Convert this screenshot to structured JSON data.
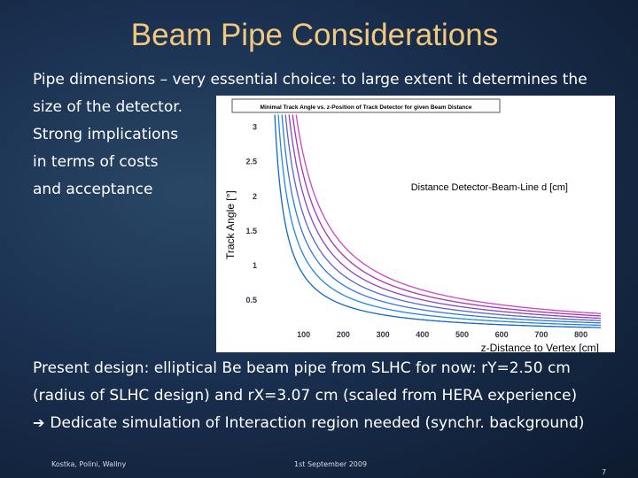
{
  "slide": {
    "title": "Beam Pipe Considerations",
    "line1": "Pipe dimensions – very essential choice: to large extent it determines the",
    "line2": "size of the detector.",
    "line3": "Strong implications",
    "line4": "in terms of costs",
    "line5": "and acceptance",
    "line6": "Present design: elliptical Be beam pipe from SLHC for now: rY=2.50 cm",
    "line7": "(radius of SLHC design)  and rX=3.07 cm (scaled from HERA experience)",
    "line8": "Dedicate simulation of Interaction region needed (synchr. background)",
    "arrow_icon": "right-arrow-icon",
    "footer_left": "Kostka, Polini, Wallny",
    "footer_center": "1st September 2009",
    "page_number": "7"
  },
  "chart_data": {
    "type": "line",
    "title": "Minimal Track Angle vs. z-Position of Track Detector for given Beam Distance",
    "xlabel": "z-Distance to Vertex [cm]",
    "ylabel": "Track Angle [°]",
    "annotation": "Distance Detector-Beam-Line d [cm]",
    "xlim": [
      0,
      850
    ],
    "ylim": [
      0,
      3.2
    ],
    "xticks": [
      100,
      200,
      300,
      400,
      500,
      600,
      700,
      800
    ],
    "yticks": [
      0.5,
      1,
      1.5,
      2,
      2.5,
      3
    ],
    "grid": false,
    "series": [
      {
        "d": 4.5,
        "color": "#cc44cc"
      },
      {
        "d": 4.0,
        "color": "#aa33aa"
      },
      {
        "d": 3.5,
        "color": "#8844cc"
      },
      {
        "d": 3.0,
        "color": "#5566cc"
      },
      {
        "d": 2.5,
        "color": "#3377dd"
      },
      {
        "d": 2.0,
        "color": "#2288dd"
      },
      {
        "d": 1.5,
        "color": "#1166cc"
      }
    ]
  }
}
